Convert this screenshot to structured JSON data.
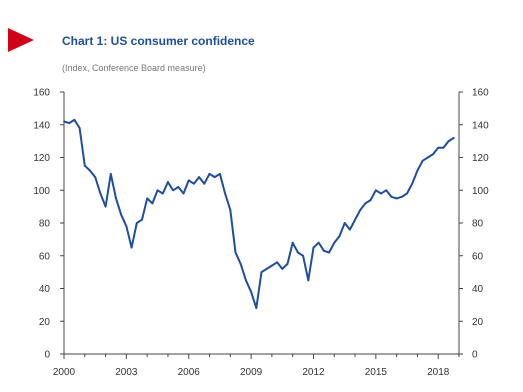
{
  "header": {
    "title": "Chart 1: US consumer confidence",
    "subtitle": "(Index, Conference Board measure)",
    "marker_color": "#d0021b"
  },
  "chart_data": {
    "type": "line",
    "title": "Chart 1: US consumer confidence",
    "subtitle": "(Index, Conference Board measure)",
    "xlabel": "",
    "ylabel": "",
    "xlim": [
      2000,
      2019
    ],
    "ylim": [
      0,
      160
    ],
    "x_ticks": [
      2000,
      2003,
      2006,
      2009,
      2012,
      2015,
      2018
    ],
    "y_ticks": [
      0,
      20,
      40,
      60,
      80,
      100,
      120,
      140,
      160
    ],
    "dual_y_axis": true,
    "grid": false,
    "legend": "none",
    "series": [
      {
        "color": "#1f4e9c",
        "x": [
          2000.0,
          2000.25,
          2000.5,
          2000.75,
          2001.0,
          2001.25,
          2001.5,
          2001.75,
          2002.0,
          2002.25,
          2002.5,
          2002.75,
          2003.0,
          2003.25,
          2003.5,
          2003.75,
          2004.0,
          2004.25,
          2004.5,
          2004.75,
          2005.0,
          2005.25,
          2005.5,
          2005.75,
          2006.0,
          2006.25,
          2006.5,
          2006.75,
          2007.0,
          2007.25,
          2007.5,
          2007.75,
          2008.0,
          2008.25,
          2008.5,
          2008.75,
          2009.0,
          2009.25,
          2009.5,
          2009.75,
          2010.0,
          2010.25,
          2010.5,
          2010.75,
          2011.0,
          2011.25,
          2011.5,
          2011.75,
          2012.0,
          2012.25,
          2012.5,
          2012.75,
          2013.0,
          2013.25,
          2013.5,
          2013.75,
          2014.0,
          2014.25,
          2014.5,
          2014.75,
          2015.0,
          2015.25,
          2015.5,
          2015.75,
          2016.0,
          2016.25,
          2016.5,
          2016.75,
          2017.0,
          2017.25,
          2017.5,
          2017.75,
          2018.0,
          2018.25,
          2018.5,
          2018.75
        ],
        "y": [
          142,
          141,
          143,
          138,
          115,
          112,
          108,
          98,
          90,
          110,
          95,
          85,
          78,
          65,
          80,
          82,
          95,
          92,
          100,
          98,
          105,
          100,
          102,
          98,
          106,
          104,
          108,
          104,
          110,
          108,
          110,
          98,
          88,
          62,
          55,
          45,
          38,
          28,
          50,
          52,
          54,
          56,
          52,
          55,
          68,
          62,
          60,
          45,
          65,
          68,
          63,
          62,
          68,
          72,
          80,
          76,
          82,
          88,
          92,
          94,
          100,
          98,
          100,
          96,
          95,
          96,
          98,
          104,
          112,
          118,
          120,
          122,
          126,
          126,
          130,
          132
        ]
      }
    ]
  }
}
